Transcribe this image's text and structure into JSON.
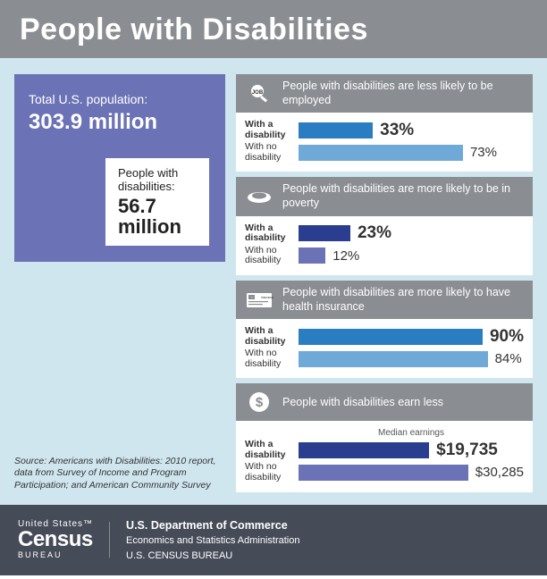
{
  "title": "People with Disabilities",
  "population": {
    "total_label": "Total U.S. population:",
    "total_value": "303.9 million",
    "disabled_label": "People with disabilities:",
    "disabled_value": "56.7 million"
  },
  "source": "Source: Americans with Disabilities: 2010 report, data from Survey of Income and Program Participation; and American Community Survey",
  "stats": [
    {
      "icon": "job",
      "title": "People with disabilities are less likely to be employed",
      "with_label": "With a disability",
      "without_label": "With no disability",
      "with_value": "33%",
      "with_width": 33,
      "with_color": "#2a7dc1",
      "without_value": "73%",
      "without_width": 73,
      "without_color": "#6fa9d8"
    },
    {
      "icon": "plate",
      "title": "People with disabilities are more likely to be in poverty",
      "with_label": "With a disability",
      "without_label": "With no disability",
      "with_value": "23%",
      "with_width": 23,
      "with_color": "#2a3d8f",
      "without_value": "12%",
      "without_width": 12,
      "without_color": "#6b72b5"
    },
    {
      "icon": "insurance",
      "title": "People with disabilities are more likely to have health insurance",
      "with_label": "With a disability",
      "without_label": "With no disability",
      "with_value": "90%",
      "with_width": 90,
      "with_color": "#2a7dc1",
      "without_value": "84%",
      "without_width": 84,
      "without_color": "#6fa9d8"
    },
    {
      "icon": "dollar",
      "title": "People with disabilities earn less",
      "subhead": "Median earnings",
      "with_label": "With a disability",
      "without_label": "With no disability",
      "with_value": "$19,735",
      "with_width": 58,
      "with_color": "#2a3d8f",
      "without_value": "$30,285",
      "without_width": 89,
      "without_color": "#6b72b5"
    }
  ],
  "footer": {
    "logo_us": "United States™",
    "logo_census": "Census",
    "logo_bureau": "BUREAU",
    "dept1": "U.S. Department of Commerce",
    "dept2": "Economics and Statistics Administration",
    "dept3": "U.S. CENSUS BUREAU"
  },
  "colors": {
    "header_bg": "#8a8d92",
    "content_bg": "#d0e6ef",
    "popbox_bg": "#6b72b5",
    "footer_bg": "#464b58"
  }
}
